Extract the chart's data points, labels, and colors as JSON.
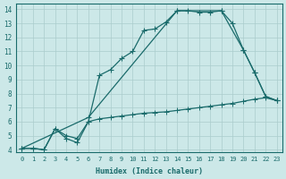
{
  "xlabel": "Humidex (Indice chaleur)",
  "bg_color": "#cce8e8",
  "line_color": "#1a6b6b",
  "grid_color": "#aacccc",
  "xlim": [
    -0.5,
    23.5
  ],
  "ylim": [
    3.8,
    14.4
  ],
  "xticks": [
    0,
    1,
    2,
    3,
    4,
    5,
    6,
    7,
    8,
    9,
    10,
    11,
    12,
    13,
    14,
    15,
    16,
    17,
    18,
    19,
    20,
    21,
    22,
    23
  ],
  "yticks": [
    4,
    5,
    6,
    7,
    8,
    9,
    10,
    11,
    12,
    13,
    14
  ],
  "line1_x": [
    0,
    1,
    2,
    3,
    4,
    5,
    6,
    7,
    8,
    9,
    10,
    11,
    12,
    13,
    14,
    15,
    16,
    17,
    18,
    19,
    20,
    21,
    22,
    23
  ],
  "line1_y": [
    4.1,
    4.1,
    4.0,
    5.5,
    4.8,
    4.5,
    6.0,
    9.3,
    9.7,
    10.5,
    11.0,
    12.5,
    12.6,
    13.1,
    13.9,
    13.9,
    13.8,
    13.8,
    13.9,
    13.0,
    11.1,
    9.5,
    7.8,
    7.5
  ],
  "line2_x": [
    0,
    6,
    14,
    18,
    20,
    21,
    22,
    23
  ],
  "line2_y": [
    4.1,
    6.3,
    13.9,
    13.9,
    11.1,
    9.5,
    7.8,
    7.5
  ],
  "line3_x": [
    0,
    1,
    2,
    3,
    4,
    5,
    6,
    7,
    8,
    9,
    10,
    11,
    12,
    13,
    14,
    15,
    16,
    17,
    18,
    19,
    20,
    21,
    22,
    23
  ],
  "line3_y": [
    4.1,
    4.1,
    4.0,
    5.5,
    5.0,
    4.8,
    6.0,
    6.2,
    6.3,
    6.4,
    6.5,
    6.6,
    6.65,
    6.7,
    6.8,
    6.9,
    7.0,
    7.1,
    7.2,
    7.3,
    7.45,
    7.6,
    7.7,
    7.5
  ]
}
